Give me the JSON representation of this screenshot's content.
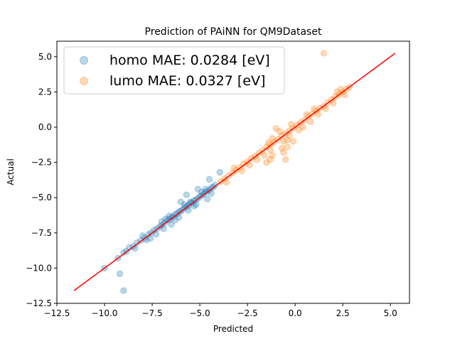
{
  "chart_data": {
    "type": "scatter",
    "title": "Prediction of PAiNN for QM9Dataset",
    "xlabel": "Predicted",
    "ylabel": "Actual",
    "xlim": [
      -12.5,
      6.0
    ],
    "ylim": [
      -12.5,
      6.1
    ],
    "xticks": [
      "−12.5",
      "−10.0",
      "−7.5",
      "−5.0",
      "−2.5",
      "0.0",
      "2.5",
      "5.0"
    ],
    "xtick_values": [
      -12.5,
      -10.0,
      -7.5,
      -5.0,
      -2.5,
      0.0,
      2.5,
      5.0
    ],
    "yticks": [
      "−12.5",
      "−10.0",
      "−7.5",
      "−5.0",
      "−2.5",
      "0.0",
      "2.5",
      "5.0"
    ],
    "ytick_values": [
      -12.5,
      -10.0,
      -7.5,
      -5.0,
      -2.5,
      0.0,
      2.5,
      5.0
    ],
    "grid": false,
    "legend_position": "top-left",
    "series": [
      {
        "name": "homo MAE: 0.0284 [eV]",
        "color": "#1f77b4",
        "points": [
          [
            -9.0,
            -8.9
          ],
          [
            -8.85,
            -8.8
          ],
          [
            -8.7,
            -8.55
          ],
          [
            -8.5,
            -8.45
          ],
          [
            -8.3,
            -8.2
          ],
          [
            -8.1,
            -8.05
          ],
          [
            -7.9,
            -7.85
          ],
          [
            -7.7,
            -7.6
          ],
          [
            -7.55,
            -7.5
          ],
          [
            -7.4,
            -7.3
          ],
          [
            -7.25,
            -7.2
          ],
          [
            -7.1,
            -7.05
          ],
          [
            -7.0,
            -6.95
          ],
          [
            -6.85,
            -6.8
          ],
          [
            -6.7,
            -6.6
          ],
          [
            -6.6,
            -6.55
          ],
          [
            -6.5,
            -6.4
          ],
          [
            -6.4,
            -6.35
          ],
          [
            -6.3,
            -6.2
          ],
          [
            -6.2,
            -6.15
          ],
          [
            -6.1,
            -6.0
          ],
          [
            -6.0,
            -5.95
          ],
          [
            -5.9,
            -5.85
          ],
          [
            -5.8,
            -5.7
          ],
          [
            -5.7,
            -5.65
          ],
          [
            -5.6,
            -5.55
          ],
          [
            -5.5,
            -5.4
          ],
          [
            -5.4,
            -5.35
          ],
          [
            -5.3,
            -5.2
          ],
          [
            -5.2,
            -5.15
          ],
          [
            -5.1,
            -5.05
          ],
          [
            -5.0,
            -4.9
          ],
          [
            -4.9,
            -4.85
          ],
          [
            -4.8,
            -4.75
          ],
          [
            -4.7,
            -4.6
          ],
          [
            -4.6,
            -4.55
          ],
          [
            -4.5,
            -4.45
          ],
          [
            -4.4,
            -4.3
          ],
          [
            -4.3,
            -4.25
          ],
          [
            -4.2,
            -4.1
          ],
          [
            -8.0,
            -7.7
          ],
          [
            -7.3,
            -7.6
          ],
          [
            -6.8,
            -6.5
          ],
          [
            -6.3,
            -6.6
          ],
          [
            -5.8,
            -5.5
          ],
          [
            -5.3,
            -5.6
          ],
          [
            -4.9,
            -4.6
          ],
          [
            -5.5,
            -5.3
          ],
          [
            -6.1,
            -6.4
          ],
          [
            -7.6,
            -7.9
          ],
          [
            -7.0,
            -6.7
          ],
          [
            -6.5,
            -6.9
          ],
          [
            -5.6,
            -5.9
          ],
          [
            -4.7,
            -4.4
          ],
          [
            -8.4,
            -8.6
          ],
          [
            -9.3,
            -9.3
          ],
          [
            -5.1,
            -4.4
          ],
          [
            -4.6,
            -5.1
          ],
          [
            -4.5,
            -3.7
          ],
          [
            -3.95,
            -3.2
          ],
          [
            -5.7,
            -4.8
          ],
          [
            -6.0,
            -5.3
          ],
          [
            -10.0,
            -10.0
          ],
          [
            -9.2,
            -10.4
          ],
          [
            -9.0,
            -11.6
          ],
          [
            -5.2,
            -5.5
          ],
          [
            -6.6,
            -6.3
          ],
          [
            -7.8,
            -8.0
          ],
          [
            -4.4,
            -4.7
          ],
          [
            -6.9,
            -7.2
          ]
        ]
      },
      {
        "name": "lumo MAE: 0.0327 [eV]",
        "color": "#ff7f0e",
        "points": [
          [
            -3.9,
            -3.85
          ],
          [
            -3.7,
            -3.65
          ],
          [
            -3.5,
            -3.45
          ],
          [
            -3.3,
            -3.25
          ],
          [
            -3.1,
            -3.05
          ],
          [
            -2.9,
            -2.85
          ],
          [
            -2.7,
            -2.6
          ],
          [
            -2.5,
            -2.45
          ],
          [
            -2.3,
            -2.2
          ],
          [
            -2.1,
            -2.05
          ],
          [
            -1.9,
            -1.85
          ],
          [
            -1.7,
            -1.65
          ],
          [
            -1.5,
            -1.4
          ],
          [
            -1.3,
            -1.25
          ],
          [
            -1.1,
            -1.05
          ],
          [
            -0.9,
            -0.85
          ],
          [
            -0.7,
            -0.6
          ],
          [
            -0.5,
            -0.45
          ],
          [
            -0.3,
            -0.25
          ],
          [
            -0.1,
            -0.05
          ],
          [
            0.1,
            0.15
          ],
          [
            0.3,
            0.35
          ],
          [
            0.5,
            0.5
          ],
          [
            0.7,
            0.75
          ],
          [
            0.9,
            0.95
          ],
          [
            1.1,
            1.15
          ],
          [
            1.3,
            1.35
          ],
          [
            1.5,
            1.5
          ],
          [
            1.7,
            1.75
          ],
          [
            1.9,
            1.95
          ],
          [
            2.1,
            2.15
          ],
          [
            2.3,
            2.3
          ],
          [
            2.5,
            2.5
          ],
          [
            2.7,
            2.7
          ],
          [
            2.85,
            2.85
          ],
          [
            -2.4,
            -2.7
          ],
          [
            -1.6,
            -2.0
          ],
          [
            -1.2,
            -0.8
          ],
          [
            -0.6,
            -1.0
          ],
          [
            -0.2,
            0.2
          ],
          [
            0.4,
            0.0
          ],
          [
            1.0,
            1.3
          ],
          [
            1.6,
            1.3
          ],
          [
            2.2,
            2.5
          ],
          [
            2.6,
            2.3
          ],
          [
            -0.8,
            -0.3
          ],
          [
            -0.4,
            -0.9
          ],
          [
            -1.4,
            -1.1
          ],
          [
            0.6,
            0.9
          ],
          [
            1.2,
            0.9
          ],
          [
            -0.6,
            -1.8
          ],
          [
            -1.2,
            -2.0
          ],
          [
            -1.0,
            -0.1
          ],
          [
            -0.7,
            -1.5
          ],
          [
            -1.3,
            -2.3
          ],
          [
            -1.5,
            -2.5
          ],
          [
            -0.5,
            -2.3
          ],
          [
            -0.4,
            -1.4
          ],
          [
            -0.3,
            -0.6
          ],
          [
            1.5,
            5.25
          ],
          [
            -1.3,
            -1.6
          ],
          [
            -2.0,
            -2.3
          ],
          [
            -3.2,
            -2.9
          ],
          [
            -2.8,
            -3.1
          ],
          [
            -0.1,
            -1.0
          ],
          [
            0.8,
            0.4
          ],
          [
            2.0,
            1.7
          ],
          [
            2.4,
            2.7
          ],
          [
            -3.6,
            -3.9
          ],
          [
            0.2,
            -0.2
          ]
        ]
      }
    ],
    "reference_line": {
      "color": "#ff0000",
      "from": [
        -11.6,
        -11.6
      ],
      "to": [
        5.25,
        5.25
      ]
    }
  }
}
